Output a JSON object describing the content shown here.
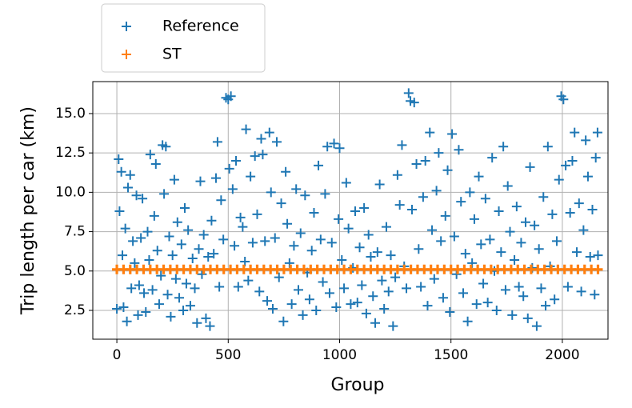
{
  "chart_data": {
    "type": "scatter",
    "xlabel": "Group",
    "ylabel": "Trip length per car (km)",
    "xlim": [
      -108,
      2205
    ],
    "ylim": [
      0.67,
      17.03
    ],
    "xticks": [
      0,
      500,
      1000,
      1500,
      2000
    ],
    "yticks": [
      2.5,
      {
        "value": 5,
        "label": "5.0"
      },
      7.5,
      {
        "value": 10,
        "label": "10.0"
      },
      12.5,
      {
        "value": 15,
        "label": "15.0"
      }
    ],
    "grid": true,
    "legend": "upper left outside",
    "series": [
      {
        "name": "Reference",
        "color": "#1f77b4",
        "x": [
          0,
          8,
          12,
          20,
          25,
          30,
          38,
          45,
          50,
          60,
          65,
          72,
          80,
          88,
          95,
          100,
          108,
          115,
          122,
          130,
          138,
          145,
          150,
          160,
          168,
          175,
          182,
          190,
          198,
          205,
          212,
          220,
          228,
          235,
          242,
          250,
          258,
          265,
          272,
          280,
          290,
          298,
          305,
          312,
          320,
          330,
          340,
          350,
          360,
          368,
          375,
          382,
          390,
          400,
          410,
          418,
          425,
          435,
          445,
          452,
          460,
          468,
          478,
          490,
          500,
          505,
          512,
          520,
          528,
          535,
          545,
          555,
          565,
          575,
          580,
          590,
          600,
          610,
          620,
          630,
          640,
          648,
          655,
          665,
          675,
          685,
          692,
          700,
          710,
          718,
          728,
          738,
          748,
          758,
          765,
          775,
          785,
          795,
          805,
          815,
          825,
          835,
          845,
          855,
          865,
          875,
          885,
          895,
          905,
          915,
          925,
          935,
          945,
          955,
          965,
          975,
          985,
          995,
          1000,
          1010,
          1020,
          1030,
          1040,
          1050,
          1060,
          1070,
          1080,
          1090,
          1100,
          1110,
          1120,
          1130,
          1140,
          1150,
          1160,
          1170,
          1180,
          1190,
          1200,
          1210,
          1220,
          1230,
          1240,
          1250,
          1260,
          1270,
          1280,
          1290,
          1300,
          1310,
          1318,
          1325,
          1335,
          1345,
          1355,
          1365,
          1375,
          1385,
          1395,
          1405,
          1415,
          1425,
          1435,
          1445,
          1455,
          1465,
          1475,
          1485,
          1495,
          1505,
          1515,
          1525,
          1535,
          1545,
          1555,
          1565,
          1575,
          1585,
          1595,
          1605,
          1615,
          1625,
          1635,
          1645,
          1655,
          1665,
          1675,
          1685,
          1695,
          1705,
          1715,
          1725,
          1735,
          1745,
          1755,
          1765,
          1775,
          1785,
          1795,
          1805,
          1815,
          1825,
          1835,
          1845,
          1855,
          1865,
          1875,
          1885,
          1895,
          1905,
          1915,
          1925,
          1935,
          1945,
          1955,
          1965,
          1975,
          1985,
          1995,
          2005,
          2015,
          2025,
          2035,
          2045,
          2055,
          2065,
          2075,
          2085,
          2095,
          2105,
          2115,
          2125,
          2135,
          2145,
          2150,
          2158,
          2160
        ],
        "values": [
          2.6,
          12.1,
          8.8,
          11.3,
          6.0,
          2.7,
          7.7,
          1.8,
          10.3,
          11.1,
          3.9,
          6.9,
          5.5,
          9.8,
          2.2,
          4.1,
          7.1,
          9.6,
          3.6,
          2.4,
          7.5,
          5.7,
          12.4,
          3.8,
          8.5,
          11.8,
          6.3,
          2.9,
          4.7,
          13.0,
          9.9,
          12.9,
          3.5,
          7.2,
          2.1,
          6.0,
          10.8,
          4.5,
          8.1,
          3.3,
          6.7,
          2.5,
          9.0,
          4.2,
          7.6,
          2.8,
          5.8,
          3.9,
          1.7,
          6.4,
          10.7,
          4.8,
          7.3,
          2.0,
          5.9,
          1.5,
          8.2,
          6.1,
          10.9,
          13.2,
          4.0,
          9.5,
          7.0,
          16.0,
          15.9,
          11.5,
          16.1,
          10.2,
          6.6,
          12.0,
          4.0,
          8.4,
          7.8,
          5.6,
          14.0,
          4.4,
          11.0,
          6.8,
          12.3,
          8.6,
          3.7,
          13.4,
          12.4,
          6.9,
          3.1,
          13.8,
          10.0,
          2.6,
          7.1,
          13.2,
          4.6,
          9.3,
          1.8,
          11.3,
          8.0,
          5.5,
          2.9,
          6.6,
          10.2,
          3.8,
          7.4,
          2.2,
          9.8,
          4.9,
          3.2,
          6.3,
          8.7,
          2.5,
          11.7,
          7.0,
          4.3,
          9.9,
          12.9,
          3.6,
          6.8,
          13.1,
          2.7,
          8.3,
          12.8,
          5.7,
          3.9,
          10.6,
          7.7,
          2.9,
          5.2,
          8.8,
          3.0,
          6.5,
          4.1,
          9.0,
          2.3,
          7.3,
          5.9,
          3.4,
          1.7,
          6.2,
          10.5,
          4.4,
          2.6,
          7.8,
          3.7,
          6.0,
          1.5,
          4.6,
          11.1,
          9.2,
          13.0,
          5.3,
          3.9,
          16.3,
          15.8,
          8.9,
          15.7,
          11.8,
          6.4,
          4.0,
          9.7,
          12.0,
          2.8,
          13.8,
          7.6,
          4.5,
          10.1,
          12.5,
          6.9,
          3.3,
          8.5,
          11.4,
          2.4,
          13.7,
          7.2,
          4.8,
          12.7,
          9.4,
          3.6,
          6.1,
          1.8,
          10.0,
          5.5,
          8.3,
          2.9,
          11.0,
          6.7,
          4.2,
          9.6,
          3.0,
          7.0,
          12.2,
          5.0,
          2.5,
          8.8,
          6.2,
          12.9,
          3.8,
          10.4,
          7.5,
          2.2,
          5.7,
          9.1,
          4.0,
          6.8,
          3.4,
          8.1,
          2.0,
          11.6,
          5.2,
          7.9,
          1.5,
          6.4,
          3.9,
          9.7,
          2.8,
          12.9,
          5.3,
          8.6,
          3.2,
          6.9,
          10.8,
          16.1,
          15.9,
          11.7,
          4.0,
          8.7,
          12.0,
          13.8,
          6.2,
          9.3,
          3.7,
          7.6,
          13.3,
          11.0,
          5.9,
          8.9,
          3.5,
          12.2,
          13.8,
          6.0
        ]
      },
      {
        "name": "ST",
        "color": "#ff7f0e",
        "x": [
          0,
          30,
          60,
          90,
          120,
          150,
          180,
          210,
          240,
          270,
          300,
          330,
          360,
          390,
          420,
          450,
          480,
          510,
          540,
          570,
          600,
          630,
          660,
          690,
          720,
          750,
          780,
          810,
          840,
          870,
          900,
          930,
          960,
          990,
          1020,
          1050,
          1080,
          1110,
          1140,
          1170,
          1200,
          1230,
          1260,
          1290,
          1320,
          1350,
          1380,
          1410,
          1440,
          1470,
          1500,
          1530,
          1560,
          1590,
          1620,
          1650,
          1680,
          1710,
          1740,
          1770,
          1800,
          1830,
          1860,
          1890,
          1920,
          1950,
          1980,
          2010,
          2040,
          2070,
          2100,
          2130,
          2160
        ],
        "values": [
          5.1,
          5.1,
          5.1,
          5.1,
          5.1,
          5.1,
          5.1,
          5.1,
          5.1,
          5.1,
          5.1,
          5.1,
          5.1,
          5.1,
          5.1,
          5.1,
          5.1,
          5.1,
          5.1,
          5.1,
          5.1,
          5.1,
          5.1,
          5.1,
          5.1,
          5.1,
          5.1,
          5.1,
          5.1,
          5.1,
          5.1,
          5.1,
          5.1,
          5.1,
          5.1,
          5.1,
          5.1,
          5.1,
          5.1,
          5.1,
          5.1,
          5.1,
          5.1,
          5.1,
          5.1,
          5.1,
          5.1,
          5.1,
          5.1,
          5.1,
          5.1,
          5.1,
          5.1,
          5.1,
          5.1,
          5.1,
          5.1,
          5.1,
          5.1,
          5.1,
          5.1,
          5.1,
          5.1,
          5.1,
          5.1,
          5.1,
          5.1,
          5.1,
          5.1,
          5.1,
          5.1,
          5.1,
          5.1
        ]
      }
    ]
  }
}
